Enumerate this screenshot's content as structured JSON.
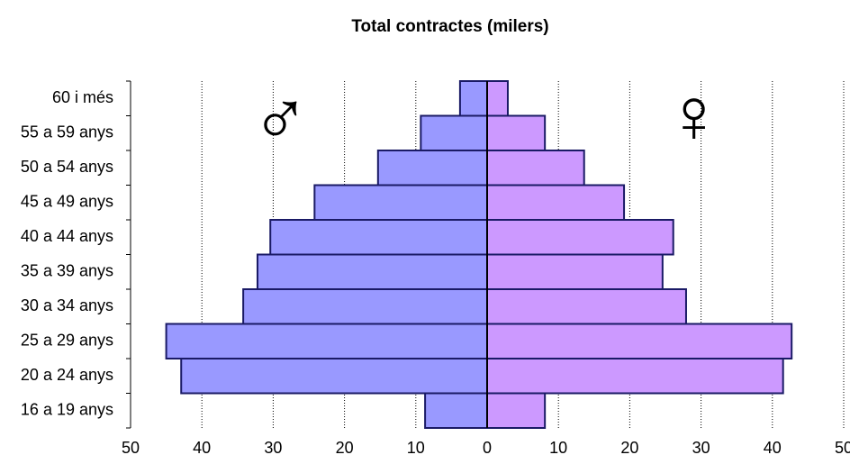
{
  "chart_data": {
    "type": "pyramid",
    "title": "Total contractes (milers)",
    "categories": [
      "60 i més",
      "55 a 59 anys",
      "50 a 54 anys",
      "45 a 49 anys",
      "40 a 44 anys",
      "35 a 39 anys",
      "30 a 34 anys",
      "25 a 29 anys",
      "20 a 24 anys",
      "16 a 19 anys"
    ],
    "series": [
      {
        "name": "♂",
        "color": "#9999ff",
        "side": "left",
        "values": [
          3.8,
          9.3,
          15.3,
          24.2,
          30.4,
          32.2,
          34.2,
          45.0,
          42.9,
          8.7
        ]
      },
      {
        "name": "♀",
        "color": "#cc99ff",
        "side": "right",
        "values": [
          2.9,
          8.1,
          13.6,
          19.2,
          26.1,
          24.6,
          27.9,
          42.7,
          41.5,
          8.1
        ]
      }
    ],
    "xlim": [
      -50,
      50
    ],
    "xticks": [
      {
        "value": -50,
        "label": "50"
      },
      {
        "value": -40,
        "label": "40"
      },
      {
        "value": -30,
        "label": "30"
      },
      {
        "value": -20,
        "label": "20"
      },
      {
        "value": -10,
        "label": "10"
      },
      0,
      10,
      20,
      30,
      40,
      50
    ],
    "grid": true
  }
}
